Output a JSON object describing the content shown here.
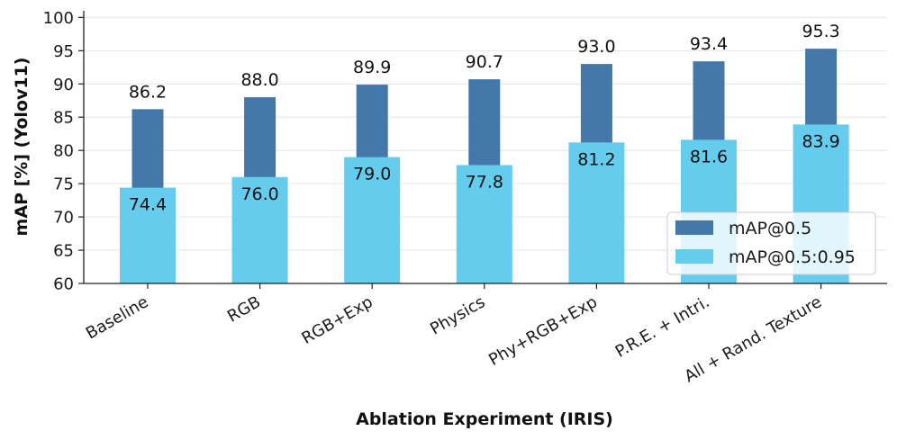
{
  "chart_data": {
    "type": "bar",
    "title": "",
    "xlabel": "Ablation Experiment (IRIS)",
    "ylabel": "mAP [%] (Yolov11)",
    "ylim": [
      60,
      101
    ],
    "yticks": [
      60,
      65,
      70,
      75,
      80,
      85,
      90,
      95,
      100
    ],
    "grid": "horizontal",
    "legend_position": "lower-right",
    "categories": [
      "Baseline",
      "RGB",
      "RGB+Exp",
      "Physics",
      "Phy+RGB+Exp",
      "P.R.E. + Intri.",
      "All + Rand. Texture"
    ],
    "series": [
      {
        "name": "mAP@0.5",
        "color": "#4477aa",
        "values": [
          86.2,
          88.0,
          89.9,
          90.7,
          93.0,
          93.4,
          95.3
        ],
        "labels": [
          "86.2",
          "88.0",
          "89.9",
          "90.7",
          "93.0",
          "93.4",
          "95.3"
        ]
      },
      {
        "name": "mAP@0.5:0.95",
        "color": "#66ccee",
        "values": [
          74.4,
          76.0,
          79.0,
          77.8,
          81.2,
          81.6,
          83.9
        ],
        "labels": [
          "74.4",
          "76.0",
          "79.0",
          "77.8",
          "81.2",
          "81.6",
          "83.9"
        ]
      }
    ]
  }
}
